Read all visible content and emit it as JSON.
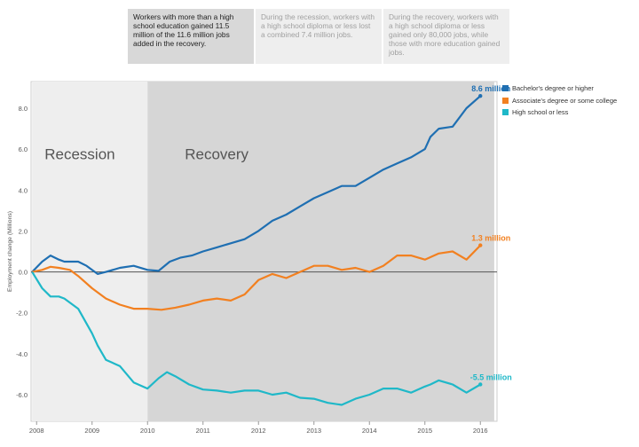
{
  "tabs": [
    {
      "text": "Workers with more than a high school education gained 11.5 million of the 11.6 million jobs added in the recovery.",
      "active": true
    },
    {
      "text": "During the recession, workers with a high school diploma or less lost a combined 7.4 million jobs.",
      "active": false
    },
    {
      "text": "During the recovery, workers with a high school diploma or less gained only 80,000 jobs, while those with more education gained jobs.",
      "active": false
    }
  ],
  "colors": {
    "bachelors": "#1f6fb2",
    "associates": "#f28020",
    "highschool": "#1fb8c8",
    "recession_bg": "#eeeeee",
    "recovery_bg": "#d6d6d6"
  },
  "chart_data": {
    "type": "line",
    "ylabel": "Employment change (Millions)",
    "xlim": [
      2007.9,
      2016.3
    ],
    "ylim": [
      -7.3,
      9.3
    ],
    "x_ticks": [
      "2008",
      "2009",
      "2010",
      "2011",
      "2012",
      "2013",
      "2014",
      "2015",
      "2016"
    ],
    "y_ticks": [
      "-6.0",
      "-4.0",
      "-2.0",
      "0.0",
      "2.0",
      "4.0",
      "6.0",
      "8.0"
    ],
    "regions": [
      {
        "label": "Recession",
        "start": 2007.92,
        "end": 2010.0
      },
      {
        "label": "Recovery",
        "start": 2010.0,
        "end": 2016.25
      }
    ],
    "series": [
      {
        "name": "Bachelor's degree or higher",
        "end_label": "8.6 million",
        "x": [
          2007.92,
          2008.1,
          2008.25,
          2008.4,
          2008.5,
          2008.75,
          2008.9,
          2009.1,
          2009.25,
          2009.5,
          2009.75,
          2010.0,
          2010.2,
          2010.4,
          2010.6,
          2010.8,
          2011.0,
          2011.25,
          2011.5,
          2011.75,
          2012.0,
          2012.25,
          2012.5,
          2012.75,
          2013.0,
          2013.25,
          2013.5,
          2013.75,
          2014.0,
          2014.25,
          2014.5,
          2014.75,
          2015.0,
          2015.1,
          2015.25,
          2015.5,
          2015.75,
          2016.0
        ],
        "y": [
          0.0,
          0.5,
          0.8,
          0.6,
          0.5,
          0.5,
          0.3,
          -0.1,
          0.0,
          0.2,
          0.3,
          0.1,
          0.05,
          0.5,
          0.7,
          0.8,
          1.0,
          1.2,
          1.4,
          1.6,
          2.0,
          2.5,
          2.8,
          3.2,
          3.6,
          3.9,
          4.2,
          4.2,
          4.6,
          5.0,
          5.3,
          5.6,
          6.0,
          6.6,
          7.0,
          7.1,
          8.0,
          8.6
        ]
      },
      {
        "name": "Associate's degree or some college",
        "end_label": "1.3 million",
        "x": [
          2007.92,
          2008.1,
          2008.25,
          2008.4,
          2008.6,
          2008.75,
          2009.0,
          2009.25,
          2009.5,
          2009.75,
          2010.0,
          2010.25,
          2010.5,
          2010.75,
          2011.0,
          2011.25,
          2011.5,
          2011.75,
          2012.0,
          2012.25,
          2012.5,
          2012.75,
          2013.0,
          2013.25,
          2013.5,
          2013.75,
          2014.0,
          2014.25,
          2014.5,
          2014.75,
          2015.0,
          2015.25,
          2015.5,
          2015.75,
          2016.0
        ],
        "y": [
          0.0,
          0.1,
          0.25,
          0.2,
          0.1,
          -0.2,
          -0.8,
          -1.3,
          -1.6,
          -1.8,
          -1.8,
          -1.85,
          -1.75,
          -1.6,
          -1.4,
          -1.3,
          -1.4,
          -1.1,
          -0.4,
          -0.1,
          -0.3,
          0.0,
          0.3,
          0.3,
          0.1,
          0.2,
          0.0,
          0.3,
          0.8,
          0.8,
          0.6,
          0.9,
          1.0,
          0.6,
          1.3
        ]
      },
      {
        "name": "High school or less",
        "end_label": "-5.5 million",
        "x": [
          2007.92,
          2008.1,
          2008.25,
          2008.4,
          2008.5,
          2008.75,
          2009.0,
          2009.1,
          2009.25,
          2009.5,
          2009.75,
          2010.0,
          2010.2,
          2010.35,
          2010.5,
          2010.75,
          2011.0,
          2011.25,
          2011.5,
          2011.75,
          2012.0,
          2012.25,
          2012.5,
          2012.75,
          2013.0,
          2013.25,
          2013.5,
          2013.75,
          2014.0,
          2014.25,
          2014.5,
          2014.75,
          2015.0,
          2015.1,
          2015.25,
          2015.5,
          2015.75,
          2016.0
        ],
        "y": [
          0.0,
          -0.8,
          -1.2,
          -1.2,
          -1.3,
          -1.8,
          -3.0,
          -3.6,
          -4.3,
          -4.6,
          -5.4,
          -5.7,
          -5.2,
          -4.9,
          -5.1,
          -5.5,
          -5.75,
          -5.8,
          -5.9,
          -5.8,
          -5.8,
          -6.0,
          -5.9,
          -6.15,
          -6.2,
          -6.4,
          -6.5,
          -6.2,
          -6.0,
          -5.7,
          -5.7,
          -5.9,
          -5.6,
          -5.5,
          -5.3,
          -5.5,
          -5.9,
          -5.5
        ]
      }
    ]
  },
  "legend_items": [
    "Bachelor's degree or higher",
    "Associate's degree or some college",
    "High school or less"
  ]
}
